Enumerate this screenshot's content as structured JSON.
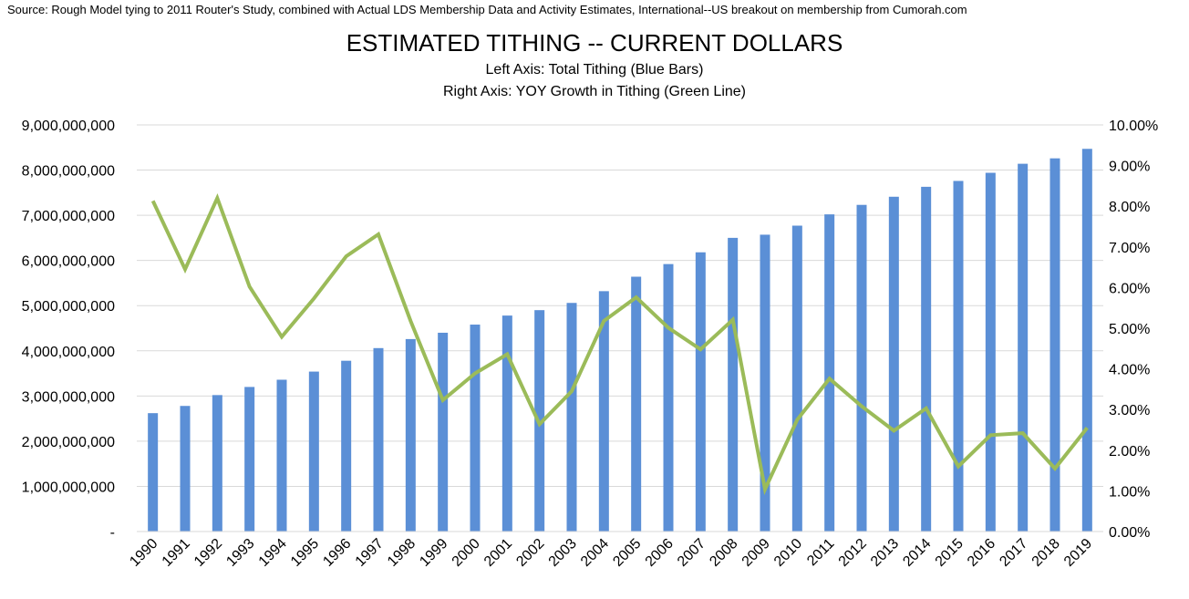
{
  "source_note": "Source: Rough Model tying to 2011 Router's Study, combined with Actual LDS Membership Data and Activity Estimates, International--US breakout on membership from Cumorah.com",
  "chart_data": {
    "type": "bar",
    "title": "ESTIMATED TITHING -- CURRENT DOLLARS",
    "subtitle_lines": [
      "Left Axis: Total Tithing (Blue Bars)",
      "Right Axis: YOY Growth in Tithing (Green Line)"
    ],
    "categories": [
      "1990",
      "1991",
      "1992",
      "1993",
      "1994",
      "1995",
      "1996",
      "1997",
      "1998",
      "1999",
      "2000",
      "2001",
      "2002",
      "2003",
      "2004",
      "2005",
      "2006",
      "2007",
      "2008",
      "2009",
      "2010",
      "2011",
      "2012",
      "2013",
      "2014",
      "2015",
      "2016",
      "2017",
      "2018",
      "2019"
    ],
    "series": [
      {
        "type": "bar",
        "axis": "left",
        "color": "#5b8fd6",
        "values": [
          2620000000,
          2780000000,
          3020000000,
          3200000000,
          3360000000,
          3540000000,
          3780000000,
          4060000000,
          4260000000,
          4400000000,
          4580000000,
          4780000000,
          4900000000,
          5060000000,
          5320000000,
          5640000000,
          5920000000,
          6180000000,
          6500000000,
          6570000000,
          6770000000,
          7020000000,
          7230000000,
          7410000000,
          7630000000,
          7760000000,
          7940000000,
          8140000000,
          8260000000,
          8470000000
        ]
      },
      {
        "type": "line",
        "axis": "right",
        "color": "#9bbb59",
        "values": [
          0.0813,
          0.0645,
          0.082,
          0.0602,
          0.0479,
          0.0573,
          0.0677,
          0.0731,
          0.0518,
          0.0323,
          0.0389,
          0.0436,
          0.0264,
          0.0345,
          0.0518,
          0.0576,
          0.0501,
          0.0448,
          0.0521,
          0.0104,
          0.0275,
          0.0376,
          0.0308,
          0.0248,
          0.0303,
          0.016,
          0.0237,
          0.0242,
          0.0155,
          0.0255
        ]
      }
    ],
    "y_left": {
      "lim": [
        0,
        9000000000
      ],
      "ticks": [
        0,
        1000000000,
        2000000000,
        3000000000,
        4000000000,
        5000000000,
        6000000000,
        7000000000,
        8000000000,
        9000000000
      ],
      "tick_labels": [
        "-",
        "1,000,000,000",
        "2,000,000,000",
        "3,000,000,000",
        "4,000,000,000",
        "5,000,000,000",
        "6,000,000,000",
        "7,000,000,000",
        "8,000,000,000",
        "9,000,000,000"
      ]
    },
    "y_right": {
      "lim": [
        0,
        0.1
      ],
      "ticks": [
        0,
        0.01,
        0.02,
        0.03,
        0.04,
        0.05,
        0.06,
        0.07,
        0.08,
        0.09,
        0.1
      ],
      "tick_labels": [
        "0.00%",
        "1.00%",
        "2.00%",
        "3.00%",
        "4.00%",
        "5.00%",
        "6.00%",
        "7.00%",
        "8.00%",
        "9.00%",
        "10.00%"
      ]
    },
    "grid": true,
    "legend": "none"
  }
}
